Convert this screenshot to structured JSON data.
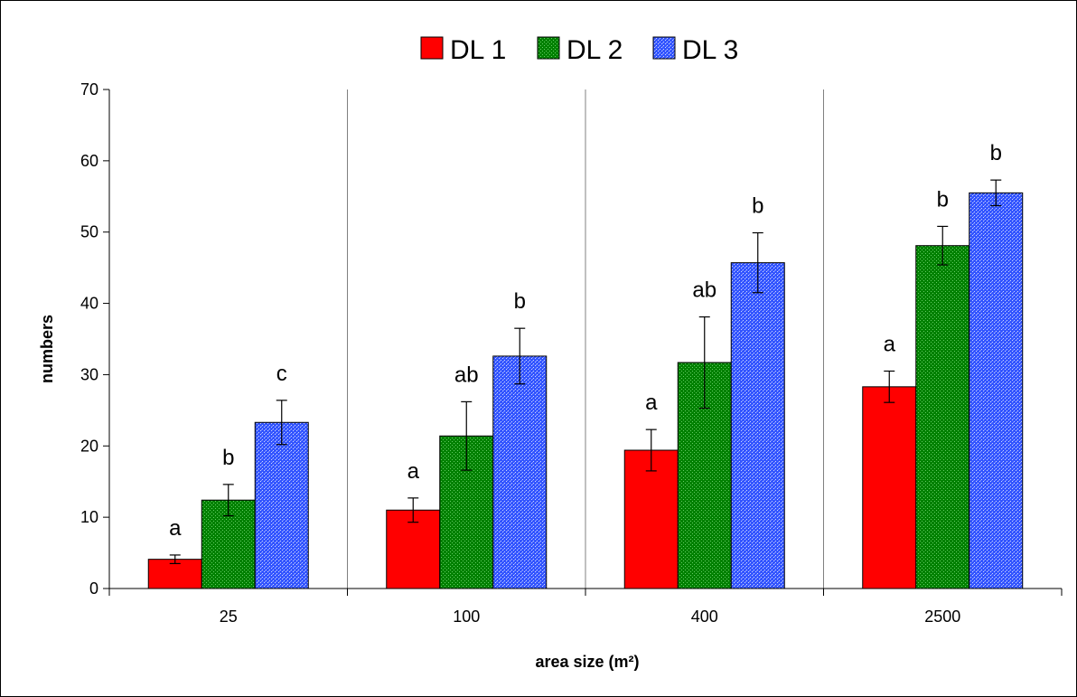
{
  "chart_data": {
    "type": "bar",
    "title": "",
    "xlabel": "area size (m²)",
    "ylabel": "numbers",
    "ylim": [
      0,
      70
    ],
    "yticks": [
      "0",
      "10",
      "20",
      "30",
      "40",
      "50",
      "60",
      "70"
    ],
    "categories": [
      "25",
      "100",
      "400",
      "2500"
    ],
    "legend_position": "top-center",
    "grid": "vertical separators between categories",
    "series": [
      {
        "name": "DL 1",
        "color": "#ff0000",
        "values": [
          4.1,
          11.0,
          19.4,
          28.3
        ],
        "errors": [
          0.6,
          1.7,
          2.9,
          2.2
        ],
        "letters": [
          "a",
          "a",
          "a",
          "a"
        ]
      },
      {
        "name": "DL 2",
        "color": "#008000",
        "values": [
          12.4,
          21.4,
          31.7,
          48.1
        ],
        "errors": [
          2.2,
          4.8,
          6.4,
          2.7
        ],
        "letters": [
          "b",
          "ab",
          "ab",
          "b"
        ]
      },
      {
        "name": "DL 3",
        "color": "#3355ff",
        "values": [
          23.3,
          32.6,
          45.7,
          55.5
        ],
        "errors": [
          3.1,
          3.9,
          4.2,
          1.8
        ],
        "letters": [
          "c",
          "b",
          "b",
          "b"
        ]
      }
    ]
  }
}
